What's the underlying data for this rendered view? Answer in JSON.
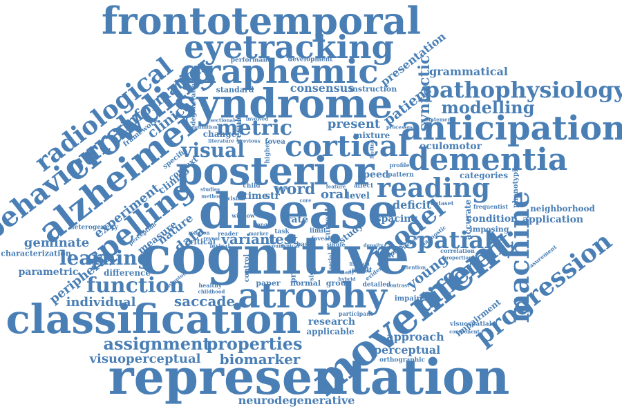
{
  "theme": {
    "word_color": "#4a7fb5",
    "background": "#ffffff"
  },
  "words": {
    "frontotemporal": "frontotemporal",
    "eyetracking": "eyetracking",
    "graphemic": "graphemic",
    "syndrome": "syndrome",
    "metric": "metric",
    "cortical": "cortical",
    "visual": "visual",
    "posterior": "posterior",
    "disease": "disease",
    "cognitive": "cognitive",
    "atrophy": "atrophy",
    "classification": "classification",
    "representation": "representation",
    "movement": "movement",
    "anticipation": "anticipation",
    "dementia": "dementia",
    "pathophysiology": "pathophysiology",
    "modelling": "modelling",
    "grammatical": "grammatical",
    "reading": "reading",
    "spatial": "spatial",
    "model": "model",
    "different": "different",
    "machine": "machine",
    "progression": "progression",
    "alzheimer": "alzheimer",
    "crowding": "crowding",
    "radiological": "radiological",
    "behavioural": "behavioural",
    "spelling": "spelling",
    "information": "information",
    "clinical": "clinical",
    "function": "function",
    "learning": "learning",
    "saccade": "saccade",
    "individual": "individual",
    "assignment": "assignment",
    "properties": "properties",
    "visuoperceptual": "visuoperceptual",
    "biomarker": "biomarker",
    "neurodegenerative": "neurodegenerative",
    "approach": "approach",
    "perceptual": "perceptual",
    "research": "research",
    "applicable": "applicable",
    "geminate": "geminate",
    "characterization": "characterization",
    "parametric": "parametric",
    "peripheral": "peripheral",
    "difference": "difference",
    "experiment": "experiment",
    "consensus": "consensus",
    "present": "present",
    "variant": "variant",
    "test": "test",
    "word": "word",
    "oral": "oral",
    "deficit": "deficit",
    "spacing": "spacing",
    "young": "young",
    "data": "data",
    "nature": "nature",
    "measure": "measure",
    "clinico": "clinico",
    "context": "context",
    "syntactic": "syntactic",
    "patient": "patient",
    "presentation": "presentation",
    "oculomotor": "oculomotor",
    "categories": "categories",
    "application": "application",
    "neighborhood": "neighborhood",
    "condition": "condition",
    "imposing": "imposing",
    "accurate": "accurate",
    "phenotypic": "phenotypic",
    "impairment": "impairment",
    "visuospatial": "visuospatial",
    "orthographic": "orthographic",
    "participant": "participant",
    "impaired": "impaired",
    "contrast": "contrast",
    "detailed": "detailed",
    "group": "group",
    "normal": "normal",
    "paper": "paper",
    "healthy": "healthy",
    "childhood": "childhood",
    "heterogeneity": "heterogeneity",
    "critical": "critical",
    "rate": "rate",
    "study": "study",
    "speed": "speed",
    "time": "time",
    "str": "str",
    "level": "level",
    "pattern": "pattern",
    "profile": "profile",
    "dataset": "dataset",
    "frequentist": "frequentist",
    "correlation": "correlation",
    "proportion": "proportion",
    "attention": "attention",
    "component": "component",
    "measurement": "measurement",
    "performance": "performance",
    "development": "development",
    "standard": "standard",
    "instruction": "instruction",
    "statement": "statement",
    "mixture": "mixture",
    "processes": "processes",
    "fovea": "fovea",
    "change": "change",
    "result": "result",
    "involved": "involved",
    "previous": "previous",
    "literature": "literature",
    "definition": "definition",
    "sectional": "sectional",
    "degeneration": "degeneration",
    "framework": "framework",
    "specific": "specific",
    "perception": "perception",
    "symptom": "symptom",
    "relation": "relation",
    "reveal": "reveal",
    "lexical": "lexical",
    "basic": "basic",
    "single": "single",
    "current": "current",
    "foveal": "foveal",
    "reader": "reader",
    "child": "child",
    "vision": "vision",
    "affect": "affect",
    "feature": "feature",
    "control": "control",
    "problem": "problem",
    "significant": "significant",
    "complex": "complex",
    "evidence": "evidence",
    "abilities": "abilities",
    "fixation": "fixation",
    "diagnostic": "diagnostic",
    "studies": "studies",
    "method": "method",
    "task": "task",
    "window": "window",
    "account": "account",
    "density": "density",
    "criterion": "criterion",
    "higher": "higher",
    "limit": "limit",
    "many": "many",
    "hybrid": "hybrid",
    "adult": "adult",
    "marker": "marker",
    "serial": "serial",
    "typical": "typical",
    "range": "range",
    "core": "core",
    "large": "large",
    "quantity": "quantity",
    "finding": "finding"
  }
}
